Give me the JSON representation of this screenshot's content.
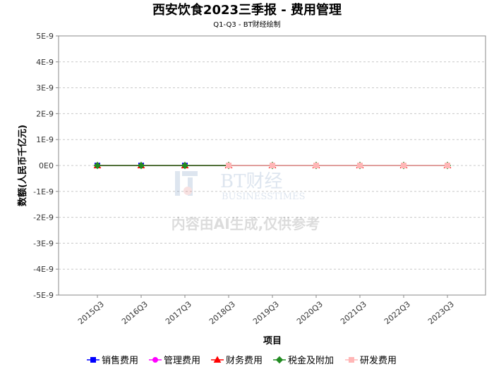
{
  "chart_data": {
    "type": "line",
    "title": "西安饮食2023三季报 - 费用管理",
    "subtitle": "Q1-Q3 - BT财经绘制",
    "xlabel": "项目",
    "ylabel": "数额(人民币千亿元)",
    "categories": [
      "2015Q3",
      "2016Q3",
      "2017Q3",
      "2018Q3",
      "2019Q3",
      "2020Q3",
      "2021Q3",
      "2022Q3",
      "2023Q3"
    ],
    "ylim": [
      -5e-09,
      5e-09
    ],
    "y_ticks": [
      "5E-9",
      "4E-9",
      "3E-9",
      "2E-9",
      "1E-9",
      "0E0",
      "-1E-9",
      "-2E-9",
      "-3E-9",
      "-4E-9",
      "-5E-9"
    ],
    "grid": true,
    "legend_position": "bottom",
    "series": [
      {
        "name": "销售费用",
        "color": "#0000ff",
        "marker": "square",
        "values": [
          0,
          0,
          0,
          0,
          0,
          0,
          0,
          0,
          0
        ]
      },
      {
        "name": "管理费用",
        "color": "#ff00ff",
        "marker": "circle",
        "values": [
          0,
          0,
          0,
          0,
          0,
          0,
          0,
          0,
          0
        ]
      },
      {
        "name": "财务费用",
        "color": "#ff0000",
        "marker": "triangle",
        "values": [
          0,
          0,
          0,
          0,
          0,
          0,
          0,
          0,
          0
        ]
      },
      {
        "name": "税金及附加",
        "color": "#228b22",
        "marker": "diamond",
        "values": [
          0,
          0,
          0,
          0,
          0,
          0,
          0,
          0,
          0
        ]
      },
      {
        "name": "研发费用",
        "color": "#ffb6b6",
        "marker": "square",
        "values": [
          null,
          null,
          null,
          0,
          0,
          0,
          0,
          0,
          0
        ]
      }
    ]
  },
  "watermark": {
    "brand": "BT财经",
    "brand_en": "BUSINESSTIMES",
    "notice": "内容由AI生成,仅供参考"
  }
}
